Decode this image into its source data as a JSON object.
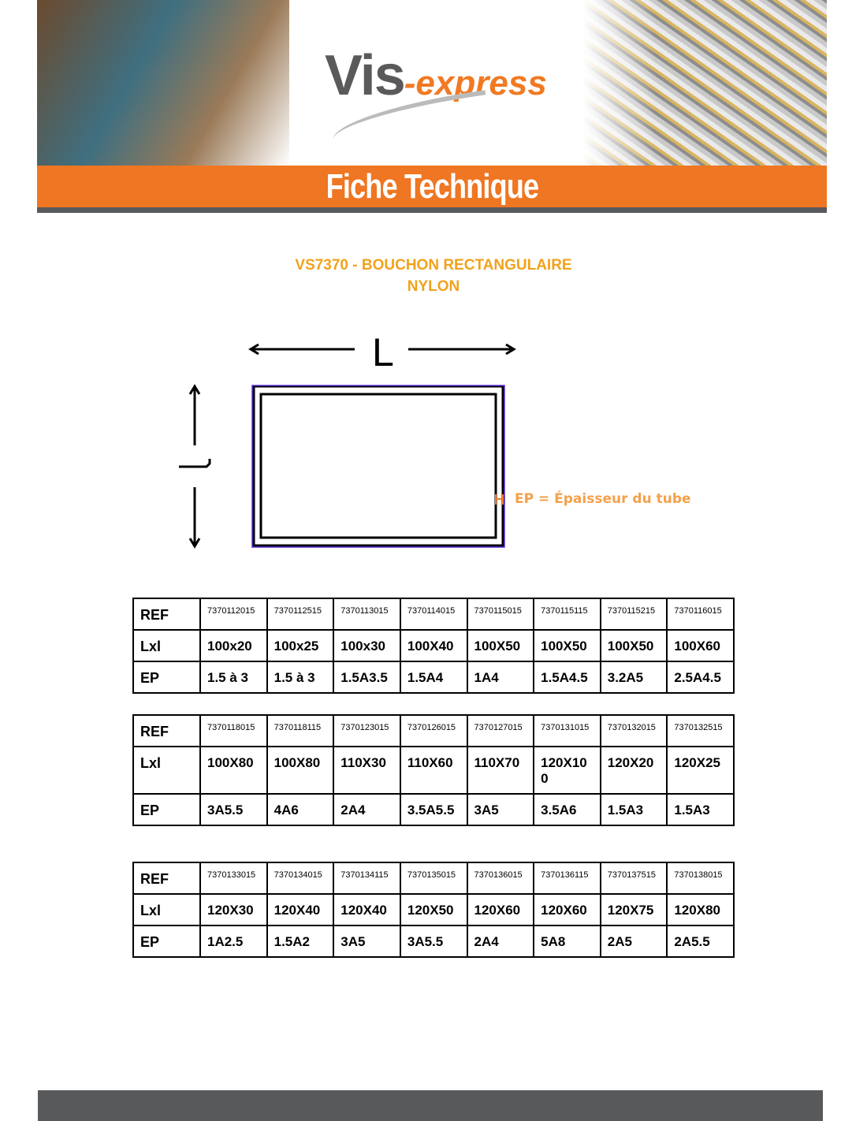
{
  "header": {
    "logo_main": "Vis",
    "logo_suffix": "-express",
    "banner_title": "Fiche Technique"
  },
  "product": {
    "title_line1": "VS7370 - BOUCHON RECTANGULAIRE",
    "title_line2": "NYLON"
  },
  "diagram": {
    "length_label": "L",
    "width_label": "l",
    "ep_legend": "EP = Épaisseur du tube",
    "outline_color": "#5b2bd6"
  },
  "tables": [
    {
      "row_labels": [
        "REF",
        "Lxl",
        "EP"
      ],
      "ref": [
        "7370112015",
        "7370112515",
        "7370113015",
        "7370114015",
        "7370115015",
        "7370115115",
        "7370115215",
        "7370116015"
      ],
      "lxl": [
        "100x20",
        "100x25",
        "100x30",
        "100X40",
        "100X50",
        "100X50",
        "100X50",
        "100X60"
      ],
      "ep": [
        "1.5 à 3",
        "1.5 à 3",
        "1.5A3.5",
        "1.5A4",
        "1A4",
        "1.5A4.5",
        "3.2A5",
        "2.5A4.5"
      ]
    },
    {
      "row_labels": [
        "REF",
        "Lxl",
        "EP"
      ],
      "ref": [
        "7370118015",
        "7370118115",
        "7370123015",
        "7370126015",
        "7370127015",
        "7370131015",
        "7370132015",
        "7370132515"
      ],
      "lxl": [
        "100X80",
        "100X80",
        "110X30",
        "110X60",
        "110X70",
        "120X100",
        "120X20",
        "120X25"
      ],
      "ep": [
        "3A5.5",
        "4A6",
        "2A4",
        "3.5A5.5",
        "3A5",
        "3.5A6",
        "1.5A3",
        "1.5A3"
      ]
    },
    {
      "row_labels": [
        "REF",
        "Lxl",
        "EP"
      ],
      "ref": [
        "7370133015",
        "7370134015",
        "7370134115",
        "7370135015",
        "7370136015",
        "7370136115",
        "7370137515",
        "7370138015"
      ],
      "lxl": [
        "120X30",
        "120X40",
        "120X40",
        "120X50",
        "120X60",
        "120X60",
        "120X75",
        "120X80"
      ],
      "ep": [
        "1A2.5",
        "1.5A2",
        "3A5",
        "3A5.5",
        "2A4",
        "5A8",
        "2A5",
        "2A5.5"
      ]
    }
  ],
  "colors": {
    "orange": "#ef7622",
    "title": "#f1a21c",
    "gray": "#58595b"
  }
}
